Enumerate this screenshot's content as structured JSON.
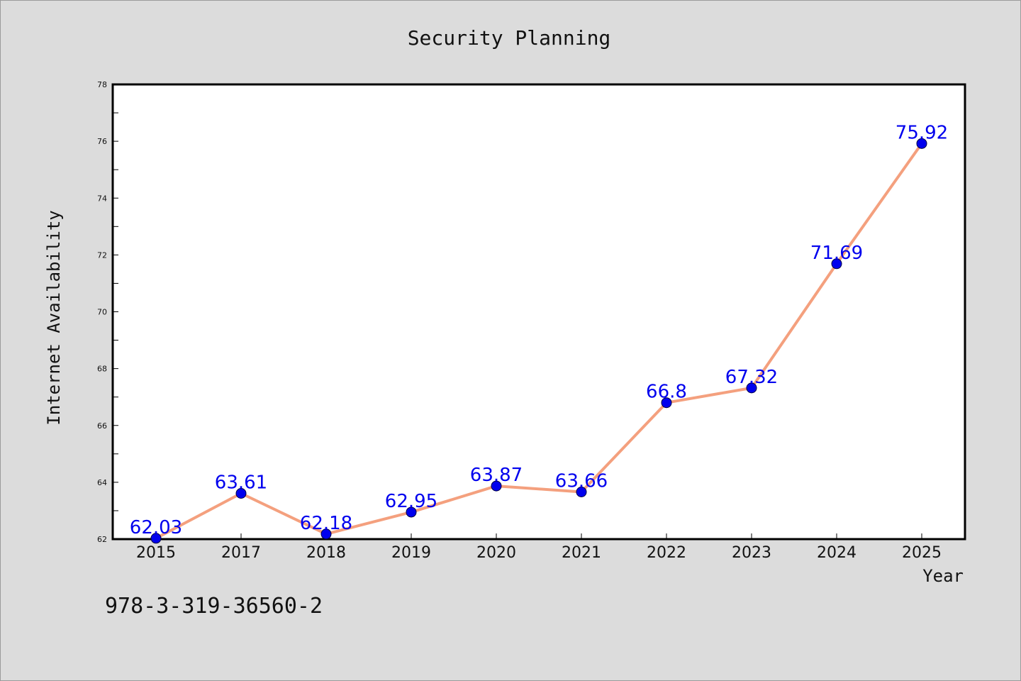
{
  "chart_data": {
    "type": "line",
    "title": "Security Planning",
    "xlabel": "Year",
    "ylabel": "Internet Availability",
    "categories": [
      "2015",
      "2017",
      "2018",
      "2019",
      "2020",
      "2021",
      "2022",
      "2023",
      "2024",
      "2025"
    ],
    "series": [
      {
        "values": [
          62.03,
          63.61,
          62.18,
          62.95,
          63.87,
          63.66,
          66.8,
          67.32,
          71.69,
          75.92
        ],
        "labels": [
          "62.03",
          "63.61",
          "62.18",
          "62.95",
          "63.87",
          "63.66",
          "66.8",
          "67.32",
          "71.69",
          "75.92"
        ],
        "line_color": "#f4a07e",
        "marker_color": "#0000ee"
      }
    ],
    "ylim": [
      62,
      78
    ],
    "yticks": [
      "62",
      "64",
      "66",
      "68",
      "70",
      "72",
      "74",
      "76",
      "78"
    ],
    "grid": false,
    "legend": "none"
  },
  "footer": {
    "text": "978-3-319-36560-2"
  },
  "colors": {
    "background": "#dcdcdc",
    "plot_background": "#ffffff",
    "frame": "#000000"
  }
}
